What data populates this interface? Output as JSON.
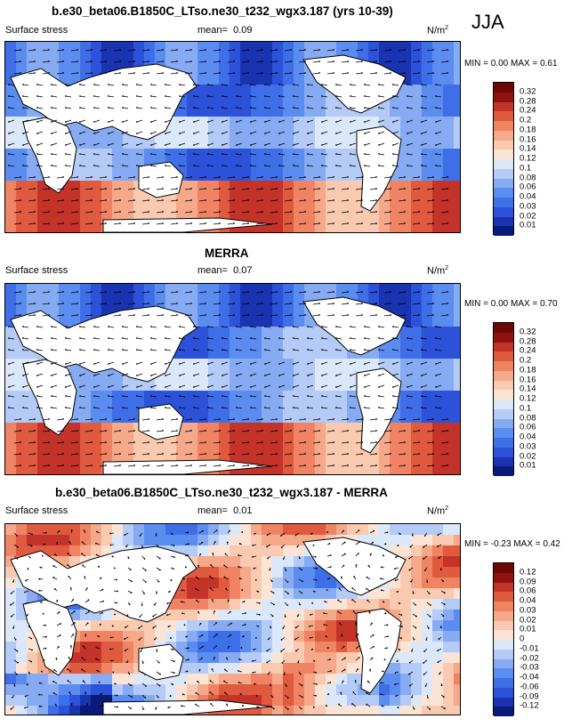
{
  "season": "JJA",
  "panels": [
    {
      "title": "b.e30_beta06.B1850C_LTso.ne30_t232_wgx3.187 (yrs 10-39)",
      "left_label": "Surface stress",
      "mean_label": "mean=",
      "mean_value": "0.09",
      "units": "N/m",
      "units_exp": "2",
      "min_label": "MIN =",
      "min_value": "0.00",
      "max_label": "MAX =",
      "max_value": "0.61",
      "colorbar_ticks": [
        "0.32",
        "0.28",
        "0.24",
        "0.2",
        "0.18",
        "0.16",
        "0.14",
        "0.12",
        "0.1",
        "0.08",
        "0.06",
        "0.04",
        "0.03",
        "0.02",
        "0.01"
      ]
    },
    {
      "title": "MERRA",
      "left_label": "Surface stress",
      "mean_label": "mean=",
      "mean_value": "0.07",
      "units": "N/m",
      "units_exp": "2",
      "min_label": "MIN =",
      "min_value": "0.00",
      "max_label": "MAX =",
      "max_value": "0.70",
      "colorbar_ticks": [
        "0.32",
        "0.28",
        "0.24",
        "0.2",
        "0.18",
        "0.16",
        "0.14",
        "0.12",
        "0.1",
        "0.08",
        "0.06",
        "0.04",
        "0.03",
        "0.02",
        "0.01"
      ]
    },
    {
      "title": "b.e30_beta06.B1850C_LTso.ne30_t232_wgx3.187 - MERRA",
      "left_label": "Surface stress",
      "mean_label": "mean=",
      "mean_value": "0.01",
      "units": "N/m",
      "units_exp": "2",
      "min_label": "MIN =",
      "min_value": "-0.23",
      "max_label": "MAX =",
      "max_value": "0.42",
      "colorbar_ticks": [
        "0.12",
        "0.09",
        "0.06",
        "0.04",
        "0.03",
        "0.02",
        "0.01",
        "0",
        "-0.01",
        "-0.02",
        "-0.03",
        "-0.04",
        "-0.06",
        "-0.09",
        "-0.12"
      ]
    }
  ],
  "colors": {
    "abs_scale": [
      "#0a1a78",
      "#1a33b0",
      "#2b52d9",
      "#3f6fe8",
      "#5b8cf0",
      "#86abf2",
      "#b3cbf6",
      "#dbe8fa",
      "#fbe4d6",
      "#f9c9b0",
      "#f5a98a",
      "#ef8363",
      "#e05a3f",
      "#c4332a",
      "#8f1212",
      "#6e0606"
    ],
    "diff_scale": [
      "#0a1a78",
      "#1a33b0",
      "#2b52d9",
      "#3f6fe8",
      "#5b8cf0",
      "#86abf2",
      "#b3cbf6",
      "#dbe8fa",
      "#fbe4d6",
      "#f9c9b0",
      "#f5a98a",
      "#ef8363",
      "#e05a3f",
      "#c4332a",
      "#8f1212",
      "#6e0606"
    ]
  },
  "chart_data": [
    {
      "type": "heatmap",
      "title": "b.e30_beta06.B1850C_LTso.ne30_t232_wgx3.187 (yrs 10-39)",
      "variable": "Surface stress",
      "units": "N/m2",
      "mean": 0.09,
      "min": 0.0,
      "max": 0.61,
      "levels": [
        0.01,
        0.02,
        0.03,
        0.04,
        0.06,
        0.08,
        0.1,
        0.12,
        0.14,
        0.16,
        0.18,
        0.2,
        0.24,
        0.28,
        0.32
      ],
      "overlay": "wind stress vectors"
    },
    {
      "type": "heatmap",
      "title": "MERRA",
      "variable": "Surface stress",
      "units": "N/m2",
      "mean": 0.07,
      "min": 0.0,
      "max": 0.7,
      "levels": [
        0.01,
        0.02,
        0.03,
        0.04,
        0.06,
        0.08,
        0.1,
        0.12,
        0.14,
        0.16,
        0.18,
        0.2,
        0.24,
        0.28,
        0.32
      ],
      "overlay": "wind stress vectors"
    },
    {
      "type": "heatmap",
      "title": "b.e30_beta06.B1850C_LTso.ne30_t232_wgx3.187 - MERRA",
      "variable": "Surface stress",
      "units": "N/m2",
      "mean": 0.01,
      "min": -0.23,
      "max": 0.42,
      "levels": [
        -0.12,
        -0.09,
        -0.06,
        -0.04,
        -0.03,
        -0.02,
        -0.01,
        0,
        0.01,
        0.02,
        0.03,
        0.04,
        0.06,
        0.09,
        0.12
      ],
      "overlay": "wind stress difference vectors"
    }
  ]
}
